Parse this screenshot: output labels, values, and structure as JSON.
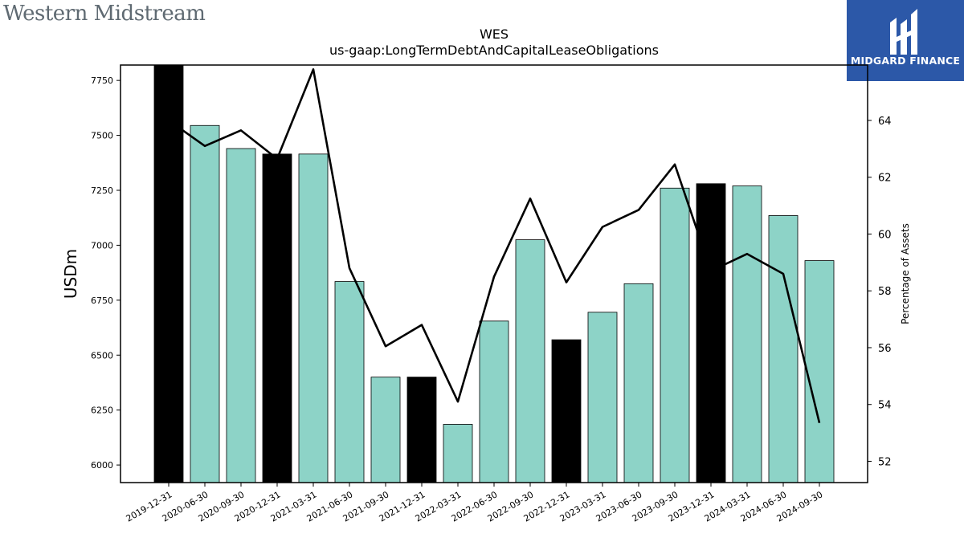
{
  "logo": {
    "company_name": "Western Midstream"
  },
  "brand": {
    "name": "MIDGARD FINANCE",
    "color": "#2c58a8"
  },
  "chart_data": {
    "type": "bar",
    "title": "WES",
    "subtitle": "us-gaap:LongTermDebtAndCapitalLeaseObligations",
    "xlabel": "",
    "ylabel": "USDm",
    "y2label": "Percentage of Assets",
    "categories": [
      "2019-12-31",
      "2020-06-30",
      "2020-09-30",
      "2020-12-31",
      "2021-03-31",
      "2021-06-30",
      "2021-09-30",
      "2021-12-31",
      "2022-03-31",
      "2022-06-30",
      "2022-09-30",
      "2022-12-31",
      "2023-03-31",
      "2023-06-30",
      "2023-09-30",
      "2023-12-31",
      "2024-03-31",
      "2024-06-30",
      "2024-09-30"
    ],
    "series": [
      {
        "type": "bar",
        "axis": "left",
        "values": [
          7820,
          7545,
          7440,
          7415,
          7415,
          6835,
          6400,
          6400,
          6185,
          6655,
          7025,
          6570,
          6695,
          6825,
          7260,
          7280,
          7270,
          7135,
          6930
        ],
        "highlight": [
          true,
          false,
          false,
          true,
          false,
          false,
          false,
          true,
          false,
          false,
          false,
          true,
          false,
          false,
          false,
          true,
          false,
          false,
          false
        ]
      },
      {
        "type": "line",
        "axis": "right",
        "values": [
          64.0,
          63.1,
          63.65,
          62.65,
          65.8,
          58.8,
          56.05,
          56.8,
          54.1,
          58.5,
          61.25,
          58.3,
          60.25,
          60.85,
          62.45,
          58.7,
          59.3,
          58.6,
          53.35
        ]
      }
    ],
    "ylim": [
      5920,
      7820
    ],
    "y2lim": [
      51.25,
      65.95
    ],
    "yticks": [
      6000,
      6250,
      6500,
      6750,
      7000,
      7250,
      7500,
      7750
    ],
    "y2ticks": [
      52,
      54,
      56,
      58,
      60,
      62,
      64
    ],
    "grid": false,
    "colors": {
      "bar": "#8dd3c7",
      "highlight_bar": "#000000",
      "line": "#000000"
    }
  }
}
